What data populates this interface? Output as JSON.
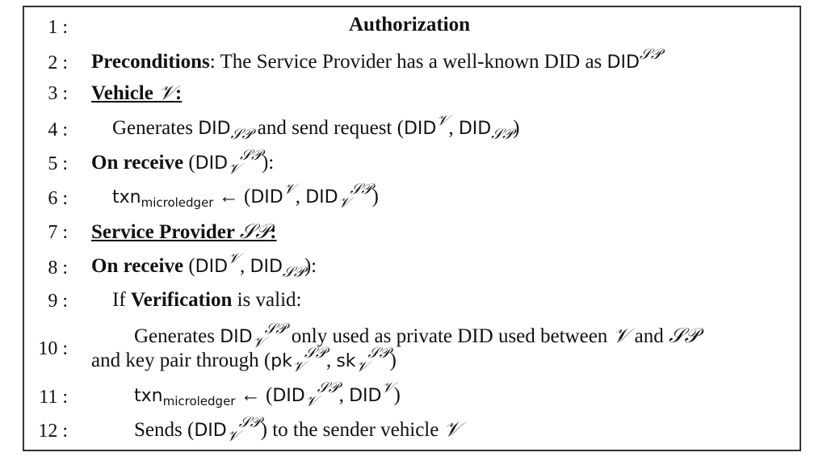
{
  "title": "Authorization",
  "colon": ":",
  "line_numbers": [
    "1",
    "2",
    "3",
    "4",
    "5",
    "6",
    "7",
    "8",
    "9",
    "10",
    "11",
    "12"
  ],
  "sym": {
    "DID": "DID",
    "SP": "𝒮𝒫",
    "V": "𝒱",
    "txn": "txn",
    "microledger": "microledger",
    "pk": "pk",
    "sk": "sk",
    "larrow": "←",
    "lparen": "(",
    "rparen": ")",
    "comma": ",",
    "paren_close_colon": "):"
  },
  "l2": {
    "bold": "Preconditions",
    "text": ": The Service Provider has a well-known DID as "
  },
  "l3": {
    "text": "Vehicle",
    "colon": ":"
  },
  "l4": {
    "pre": "Generates ",
    "mid": " and send request "
  },
  "l5": {
    "bold": "On receive"
  },
  "l7": {
    "text": "Service Provider",
    "colon": ":"
  },
  "l8": {
    "bold": "On receive"
  },
  "l9": {
    "pre": "If ",
    "bold": "Verification",
    "post": " is valid:"
  },
  "l10": {
    "pre": "Generates ",
    "mid": " only used as private DID used between ",
    "and": " and ",
    "line2_pre": "and key pair through "
  },
  "l12": {
    "pre": "Sends ",
    "mid": " to the sender vehicle "
  }
}
